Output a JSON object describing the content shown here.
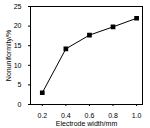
{
  "chart_data": {
    "type": "line",
    "x_label": "Electrode width/mm",
    "y_label": "Nonuniformity/%",
    "x": [
      0.2,
      0.4,
      0.6,
      0.8,
      1.0
    ],
    "values": [
      3,
      14.2,
      17.7,
      19.8,
      22
    ],
    "color": "#000000",
    "marker": "square",
    "xlim": [
      0.1,
      1.05
    ],
    "xticks": [
      0.2,
      0.4,
      0.6,
      0.8,
      {
        "value": 1.0,
        "label": "1.0"
      }
    ],
    "ylim": [
      0,
      25
    ],
    "yticks": [
      0,
      5,
      10,
      15,
      20,
      25
    ],
    "grid": false
  }
}
